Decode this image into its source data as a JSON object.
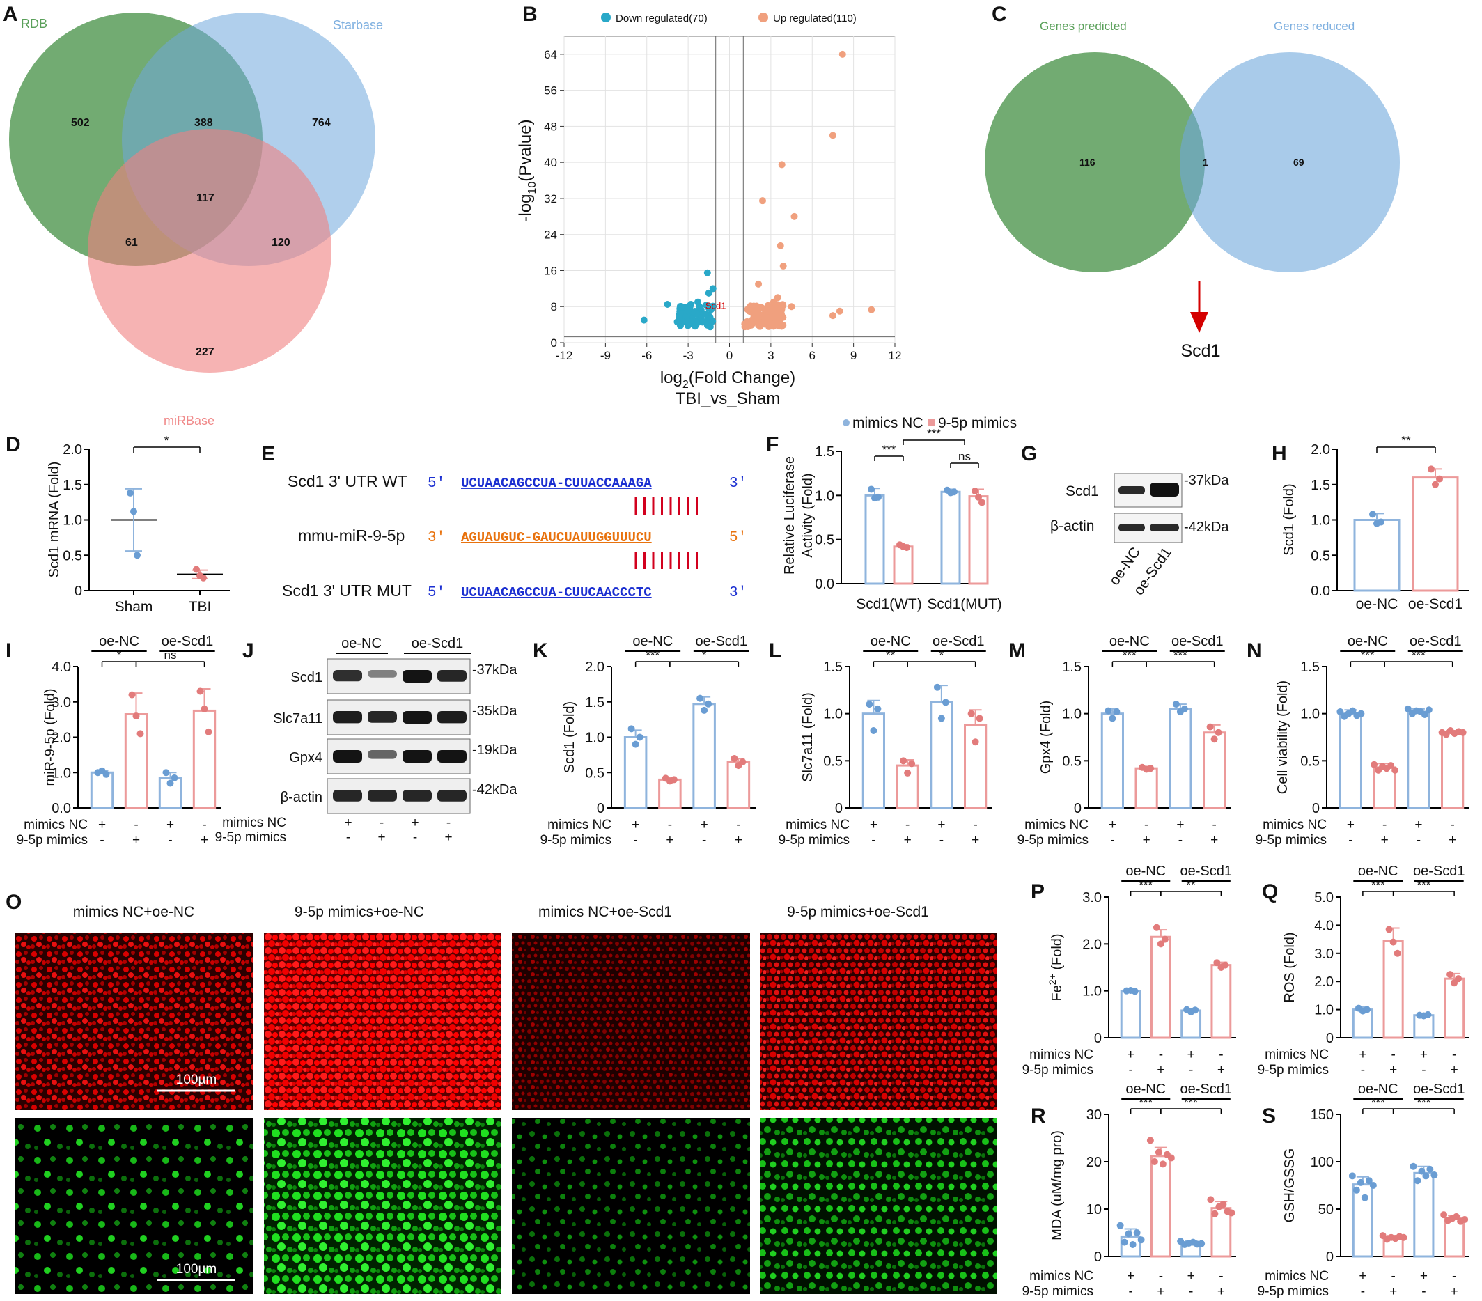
{
  "panel_labels": [
    "A",
    "B",
    "C",
    "D",
    "E",
    "F",
    "G",
    "H",
    "I",
    "J",
    "K",
    "L",
    "M",
    "N",
    "O",
    "P",
    "Q",
    "R",
    "S"
  ],
  "colors": {
    "blue": "#8fb4dd",
    "blue_dot": "#6a9dd3",
    "pink": "#ec9a9a",
    "pink_dot": "#e27b7b",
    "venn_green": "#3c8a3c",
    "venn_blue": "#6fa8dc",
    "venn_pink": "#f08080",
    "volcano_down": "#29a8c8",
    "volcano_up": "#f0a07e",
    "seq_blue": "#1b2fd1",
    "seq_orange": "#e8720e",
    "pair_red": "#d2001e",
    "scd1_red": "#d40000"
  },
  "labels": {
    "plus": "+",
    "minus": "-",
    "mimics_nc": "mimics NC",
    "mimics_95p": "9-5p mimics",
    "oe_nc": "oe-NC",
    "oe_scd1": "oe-Scd1"
  },
  "panelA": {
    "set_labels": [
      "RDB",
      "Starbase",
      "miRBase"
    ],
    "counts": {
      "rdb_only": "502",
      "rdb_star": "388",
      "star_only": "764",
      "all": "117",
      "rdb_mir": "61",
      "star_mir": "120",
      "mir_only": "227"
    }
  },
  "panelB": {
    "legend": [
      "Down regulated(70)",
      "Up regulated(110)"
    ],
    "xlabel_main": "log",
    "xlabel_sub": "2",
    "xlabel_rest": "(Fold Change)",
    "xlabel2": "TBI_vs_Sham",
    "ylabel_pre": "-log",
    "ylabel_sub": "10",
    "ylabel_rest": "(Pvalue)",
    "xticks": [
      "-12",
      "-9",
      "-6",
      "-3",
      "0",
      "3",
      "6",
      "9",
      "12"
    ],
    "yticks": [
      "0",
      "8",
      "16",
      "24",
      "32",
      "40",
      "48",
      "56",
      "64"
    ],
    "gene_label": "Scd1"
  },
  "panelC": {
    "set_labels": [
      "Genes predicted",
      "Genes reduced"
    ],
    "counts": {
      "left": "116",
      "both": "1",
      "right": "69"
    },
    "result": "Scd1"
  },
  "panelE": {
    "rows": [
      {
        "name": "Scd1 3' UTR WT",
        "p5": "5'",
        "seq": "UCUAACAGCCUA-CUUACCAAAGA",
        "p3": "3'"
      },
      {
        "name": "mmu-miR-9-5p",
        "p5": "3'",
        "seq": "AGUAUGUC-GAUCUAUUGGUUUCU",
        "p3": "5'"
      },
      {
        "name": "Scd1 3' UTR MUT",
        "p5": "5'",
        "seq": "UCUAACAGCCUA-CUUCAACCCTC",
        "p3": "3'"
      }
    ]
  },
  "panelF": {
    "legend": [
      "mimics NC",
      "9-5p mimics"
    ],
    "ylabel1": "Relative Luciferase",
    "ylabel2": "Activity (Fold)",
    "groups": [
      "Scd1(WT)",
      "Scd1(MUT)"
    ],
    "yticks": [
      "0.0",
      "0.5",
      "1.0",
      "1.5"
    ],
    "sig": [
      "***",
      "***",
      "ns"
    ]
  },
  "panelG": {
    "rows": [
      "Scd1",
      "β-actin"
    ],
    "sizes": [
      "-37kDa",
      "-42kDa"
    ],
    "lanes": [
      "oe-NC",
      "oe-Scd1"
    ]
  },
  "panelJ": {
    "rows": [
      "Scd1",
      "Slc7a11",
      "Gpx4",
      "β-actin"
    ],
    "sizes": [
      "-37kDa",
      "-35kDa",
      "-19kDa",
      "-42kDa"
    ]
  },
  "panelO": {
    "titles": [
      "mimics NC+oe-NC",
      "9-5p mimics+oe-NC",
      "mimics NC+oe-Scd1",
      "9-5p mimics+oe-Scd1"
    ],
    "scale": "100µm"
  },
  "chart_data": [
    {
      "panel": "D",
      "type": "scatter",
      "ylabel": "Scd1 mRNA (Fold)",
      "categories": [
        "Sham",
        "TBI"
      ],
      "ylim": [
        0,
        2.0
      ],
      "yticks": [
        "0",
        "0.5",
        "1.0",
        "1.5",
        "2.0"
      ],
      "series": [
        {
          "name": "Sham",
          "mean": 1.0,
          "sd": 0.44,
          "points": [
            1.38,
            1.12,
            0.5
          ]
        },
        {
          "name": "TBI",
          "mean": 0.23,
          "sd": 0.06,
          "points": [
            0.3,
            0.21,
            0.18
          ]
        }
      ],
      "sig": [
        "*"
      ]
    },
    {
      "panel": "F",
      "type": "bar",
      "ylabel": "Relative Luciferase Activity (Fold)",
      "categories": [
        "Scd1(WT)",
        "Scd1(MUT)"
      ],
      "ylim": [
        0,
        1.5
      ],
      "series": [
        {
          "name": "mimics NC",
          "values": [
            1.0,
            1.04
          ],
          "sd": [
            0.08,
            0.03
          ],
          "points": [
            [
              1.07,
              0.97,
              0.98
            ],
            [
              1.06,
              1.03,
              1.04
            ]
          ]
        },
        {
          "name": "9-5p mimics",
          "values": [
            0.42,
            0.99
          ],
          "sd": [
            0.02,
            0.08
          ],
          "points": [
            [
              0.44,
              0.42,
              0.41
            ],
            [
              1.05,
              0.98,
              0.92
            ]
          ]
        }
      ],
      "sig": [
        "***",
        "***",
        "ns"
      ]
    },
    {
      "panel": "H",
      "type": "bar",
      "ylabel": "Scd1 (Fold)",
      "categories": [
        "oe-NC",
        "oe-Scd1"
      ],
      "ylim": [
        0,
        2.0
      ],
      "yticks": [
        "0.0",
        "0.5",
        "1.0",
        "1.5",
        "2.0"
      ],
      "values": [
        1.0,
        1.6
      ],
      "sd": [
        0.09,
        0.12
      ],
      "points": [
        [
          1.08,
          0.95,
          0.97
        ],
        [
          1.72,
          1.5,
          1.58
        ]
      ],
      "sig": [
        "**"
      ]
    },
    {
      "panel": "I",
      "type": "bar",
      "ylabel": "miR-9-5p (Fold)",
      "group_labels": [
        "oe-NC",
        "oe-Scd1"
      ],
      "ylim": [
        0,
        4.0
      ],
      "yticks": [
        "0.0",
        "1.0",
        "2.0",
        "3.0",
        "4.0"
      ],
      "values": [
        1.0,
        2.65,
        0.85,
        2.75
      ],
      "sd": [
        0.06,
        0.6,
        0.15,
        0.62
      ],
      "points": [
        [
          1.0,
          1.05,
          0.95
        ],
        [
          3.2,
          2.6,
          2.1
        ],
        [
          1.0,
          0.7,
          0.85
        ],
        [
          3.3,
          2.8,
          2.15
        ]
      ],
      "sig": [
        "*",
        "ns"
      ]
    },
    {
      "panel": "K",
      "type": "bar",
      "ylabel": "Scd1 (Fold)",
      "group_labels": [
        "oe-NC",
        "oe-Scd1"
      ],
      "ylim": [
        0,
        2.0
      ],
      "yticks": [
        "0",
        "0.5",
        "1.0",
        "1.5",
        "2.0"
      ],
      "values": [
        1.0,
        0.4,
        1.47,
        0.65
      ],
      "sd": [
        0.1,
        0.03,
        0.1,
        0.05
      ],
      "points": [
        [
          1.12,
          0.9,
          1.0
        ],
        [
          0.42,
          0.38,
          0.4
        ],
        [
          1.55,
          1.38,
          1.47
        ],
        [
          0.7,
          0.6,
          0.65
        ]
      ],
      "sig": [
        "***",
        "*"
      ]
    },
    {
      "panel": "L",
      "type": "bar",
      "ylabel": "Slc7a11 (Fold)",
      "group_labels": [
        "oe-NC",
        "oe-Scd1"
      ],
      "ylim": [
        0,
        1.5
      ],
      "yticks": [
        "0",
        "0.5",
        "1.0",
        "1.5"
      ],
      "values": [
        1.0,
        0.45,
        1.12,
        0.88
      ],
      "sd": [
        0.14,
        0.06,
        0.18,
        0.16
      ],
      "points": [
        [
          1.1,
          0.82,
          1.05
        ],
        [
          0.5,
          0.37,
          0.47
        ],
        [
          1.28,
          0.95,
          1.12
        ],
        [
          1.0,
          0.7,
          0.95
        ]
      ],
      "sig": [
        "**",
        "*"
      ]
    },
    {
      "panel": "M",
      "type": "bar",
      "ylabel": "Gpx4 (Fold)",
      "group_labels": [
        "oe-NC",
        "oe-Scd1"
      ],
      "ylim": [
        0,
        1.5
      ],
      "yticks": [
        "0",
        "0.5",
        "1.0",
        "1.5"
      ],
      "values": [
        1.0,
        0.42,
        1.05,
        0.8
      ],
      "sd": [
        0.05,
        0.02,
        0.05,
        0.08
      ],
      "points": [
        [
          1.03,
          0.95,
          1.02
        ],
        [
          0.43,
          0.41,
          0.42
        ],
        [
          1.1,
          1.02,
          1.05
        ],
        [
          0.86,
          0.73,
          0.8
        ]
      ],
      "sig": [
        "***",
        "***"
      ]
    },
    {
      "panel": "N",
      "type": "bar",
      "ylabel": "Cell viability (Fold)",
      "group_labels": [
        "oe-NC",
        "oe-Scd1"
      ],
      "ylim": [
        0,
        1.5
      ],
      "yticks": [
        "0",
        "0.5",
        "1.0",
        "1.5"
      ],
      "values": [
        1.0,
        0.43,
        1.02,
        0.8
      ],
      "sd": [
        0.04,
        0.04,
        0.03,
        0.02
      ],
      "points": [
        [
          1.02,
          0.97,
          1.0,
          1.03,
          0.98,
          1.0
        ],
        [
          0.46,
          0.4,
          0.44,
          0.42,
          0.45,
          0.4
        ],
        [
          1.05,
          1.0,
          1.03,
          1.02,
          0.99,
          1.04
        ],
        [
          0.8,
          0.78,
          0.82,
          0.79,
          0.81,
          0.8
        ]
      ],
      "sig": [
        "***",
        "***"
      ]
    },
    {
      "panel": "P",
      "type": "bar",
      "ylabel": "Fe2+ (Fold)",
      "ylabel_base": "Fe",
      "ylabel_sup": "2+",
      "ylabel_rest": " (Fold)",
      "group_labels": [
        "oe-NC",
        "oe-Scd1"
      ],
      "ylim": [
        0,
        3.0
      ],
      "yticks": [
        "0",
        "1.0",
        "2.0",
        "3.0"
      ],
      "values": [
        1.0,
        2.15,
        0.58,
        1.55
      ],
      "sd": [
        0.02,
        0.15,
        0.04,
        0.06
      ],
      "points": [
        [
          1.0,
          1.01,
          0.99
        ],
        [
          2.35,
          2.0,
          2.1
        ],
        [
          0.6,
          0.55,
          0.59
        ],
        [
          1.6,
          1.5,
          1.55
        ]
      ],
      "sig": [
        "***",
        "**"
      ]
    },
    {
      "panel": "Q",
      "type": "bar",
      "ylabel": "ROS (Fold)",
      "group_labels": [
        "oe-NC",
        "oe-Scd1"
      ],
      "ylim": [
        0,
        5.0
      ],
      "yticks": [
        "0",
        "1.0",
        "2.0",
        "3.0",
        "4.0",
        "5.0"
      ],
      "values": [
        1.0,
        3.45,
        0.8,
        2.1
      ],
      "sd": [
        0.1,
        0.45,
        0.03,
        0.18
      ],
      "points": [
        [
          1.05,
          0.95,
          1.0
        ],
        [
          3.85,
          3.4,
          3.0
        ],
        [
          0.8,
          0.78,
          0.82
        ],
        [
          2.25,
          1.95,
          2.1
        ]
      ],
      "sig": [
        "***",
        "***"
      ]
    },
    {
      "panel": "R",
      "type": "bar",
      "ylabel": "MDA (uM/mg pro)",
      "group_labels": [
        "oe-NC",
        "oe-Scd1"
      ],
      "ylim": [
        0,
        30
      ],
      "yticks": [
        "0",
        "10",
        "20",
        "30"
      ],
      "values": [
        4.2,
        21.2,
        2.8,
        10.2
      ],
      "sd": [
        1.6,
        1.8,
        0.5,
        1.4
      ],
      "points": [
        [
          6.5,
          3.0,
          4.8,
          2.5,
          5.0,
          3.5
        ],
        [
          24.5,
          20.0,
          22.0,
          19.5,
          21.5,
          20.8
        ],
        [
          3.2,
          2.5,
          2.8,
          3.0,
          2.6,
          2.7
        ],
        [
          12.0,
          9.0,
          10.5,
          11.0,
          9.5,
          9.2
        ]
      ],
      "sig": [
        "***",
        "***"
      ]
    },
    {
      "panel": "S",
      "type": "bar",
      "ylabel": "GSH/GSSG",
      "group_labels": [
        "oe-NC",
        "oe-Scd1"
      ],
      "ylim": [
        0,
        150
      ],
      "yticks": [
        "0",
        "50",
        "100",
        "150"
      ],
      "values": [
        76,
        20,
        88,
        40
      ],
      "sd": [
        8,
        2,
        7,
        3
      ],
      "points": [
        [
          85,
          70,
          78,
          62,
          80,
          75
        ],
        [
          22,
          18,
          20,
          19,
          21,
          20
        ],
        [
          95,
          80,
          90,
          85,
          92,
          86
        ],
        [
          44,
          38,
          40,
          42,
          37,
          39
        ]
      ],
      "sig": [
        "***",
        "***"
      ]
    }
  ]
}
